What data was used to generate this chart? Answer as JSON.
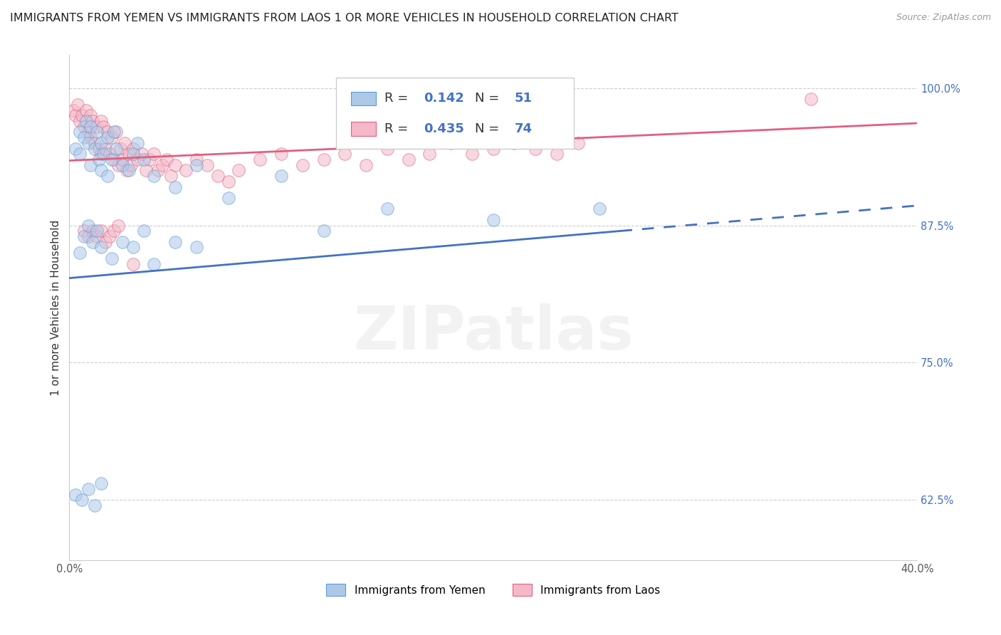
{
  "title": "IMMIGRANTS FROM YEMEN VS IMMIGRANTS FROM LAOS 1 OR MORE VEHICLES IN HOUSEHOLD CORRELATION CHART",
  "source": "Source: ZipAtlas.com",
  "ylabel": "1 or more Vehicles in Household",
  "legend_label1": "Immigrants from Yemen",
  "legend_label2": "Immigrants from Laos",
  "r1": 0.142,
  "n1": 51,
  "r2": 0.435,
  "n2": 74,
  "color1": "#aec8e8",
  "color2": "#f4b8c8",
  "edge1": "#5b9bd5",
  "edge2": "#e06080",
  "trendline1_color": "#4472c4",
  "trendline2_color": "#e06080",
  "xlim": [
    0.0,
    0.4
  ],
  "ylim": [
    0.57,
    1.03
  ],
  "xticks": [
    0.0,
    0.1,
    0.2,
    0.3,
    0.4
  ],
  "xtick_labels": [
    "0.0%",
    "",
    "",
    "",
    "40.0%"
  ],
  "ytick_labels": [
    "62.5%",
    "75.0%",
    "87.5%",
    "100.0%"
  ],
  "yticks": [
    0.625,
    0.75,
    0.875,
    1.0
  ],
  "yemen_x": [
    0.003,
    0.005,
    0.005,
    0.007,
    0.008,
    0.009,
    0.01,
    0.01,
    0.012,
    0.013,
    0.014,
    0.015,
    0.015,
    0.016,
    0.018,
    0.018,
    0.02,
    0.021,
    0.022,
    0.025,
    0.028,
    0.03,
    0.032,
    0.035,
    0.04,
    0.05,
    0.06,
    0.075,
    0.1,
    0.12,
    0.15,
    0.2,
    0.25,
    0.005,
    0.007,
    0.009,
    0.011,
    0.013,
    0.015,
    0.02,
    0.025,
    0.03,
    0.035,
    0.04,
    0.05,
    0.06,
    0.003,
    0.006,
    0.009,
    0.012,
    0.015
  ],
  "yemen_y": [
    0.945,
    0.96,
    0.94,
    0.955,
    0.97,
    0.95,
    0.965,
    0.93,
    0.945,
    0.96,
    0.935,
    0.95,
    0.925,
    0.94,
    0.955,
    0.92,
    0.935,
    0.96,
    0.945,
    0.93,
    0.925,
    0.94,
    0.95,
    0.935,
    0.92,
    0.91,
    0.93,
    0.9,
    0.92,
    0.87,
    0.89,
    0.88,
    0.89,
    0.85,
    0.865,
    0.875,
    0.86,
    0.87,
    0.855,
    0.845,
    0.86,
    0.855,
    0.87,
    0.84,
    0.86,
    0.855,
    0.63,
    0.625,
    0.635,
    0.62,
    0.64
  ],
  "laos_x": [
    0.002,
    0.003,
    0.004,
    0.005,
    0.006,
    0.007,
    0.008,
    0.009,
    0.01,
    0.01,
    0.011,
    0.012,
    0.013,
    0.014,
    0.015,
    0.015,
    0.016,
    0.017,
    0.018,
    0.019,
    0.02,
    0.021,
    0.022,
    0.023,
    0.024,
    0.025,
    0.026,
    0.027,
    0.028,
    0.029,
    0.03,
    0.032,
    0.034,
    0.036,
    0.038,
    0.04,
    0.042,
    0.044,
    0.046,
    0.048,
    0.05,
    0.055,
    0.06,
    0.065,
    0.07,
    0.075,
    0.08,
    0.09,
    0.1,
    0.11,
    0.12,
    0.13,
    0.14,
    0.15,
    0.16,
    0.17,
    0.18,
    0.19,
    0.2,
    0.21,
    0.22,
    0.23,
    0.24,
    0.007,
    0.009,
    0.011,
    0.013,
    0.015,
    0.017,
    0.019,
    0.021,
    0.023,
    0.03,
    0.35
  ],
  "laos_y": [
    0.98,
    0.975,
    0.985,
    0.97,
    0.975,
    0.965,
    0.98,
    0.96,
    0.975,
    0.955,
    0.97,
    0.95,
    0.965,
    0.945,
    0.97,
    0.94,
    0.965,
    0.945,
    0.96,
    0.94,
    0.955,
    0.935,
    0.96,
    0.93,
    0.945,
    0.935,
    0.95,
    0.925,
    0.94,
    0.93,
    0.945,
    0.935,
    0.94,
    0.925,
    0.935,
    0.94,
    0.925,
    0.93,
    0.935,
    0.92,
    0.93,
    0.925,
    0.935,
    0.93,
    0.92,
    0.915,
    0.925,
    0.935,
    0.94,
    0.93,
    0.935,
    0.94,
    0.93,
    0.945,
    0.935,
    0.94,
    0.95,
    0.94,
    0.945,
    0.95,
    0.945,
    0.94,
    0.95,
    0.87,
    0.865,
    0.87,
    0.865,
    0.87,
    0.86,
    0.865,
    0.87,
    0.875,
    0.84,
    0.99
  ],
  "trendline1_x0": 0.0,
  "trendline1_y0": 0.827,
  "trendline1_x1": 0.4,
  "trendline1_y1": 0.893,
  "trendline2_x0": 0.0,
  "trendline2_y0": 0.934,
  "trendline2_x1": 0.4,
  "trendline2_y1": 0.968,
  "background_color": "#ffffff",
  "title_fontsize": 11.5,
  "axis_label_fontsize": 11,
  "tick_fontsize": 10.5,
  "watermark": "ZIPatlas",
  "watermark_color": "#e0e0e0"
}
